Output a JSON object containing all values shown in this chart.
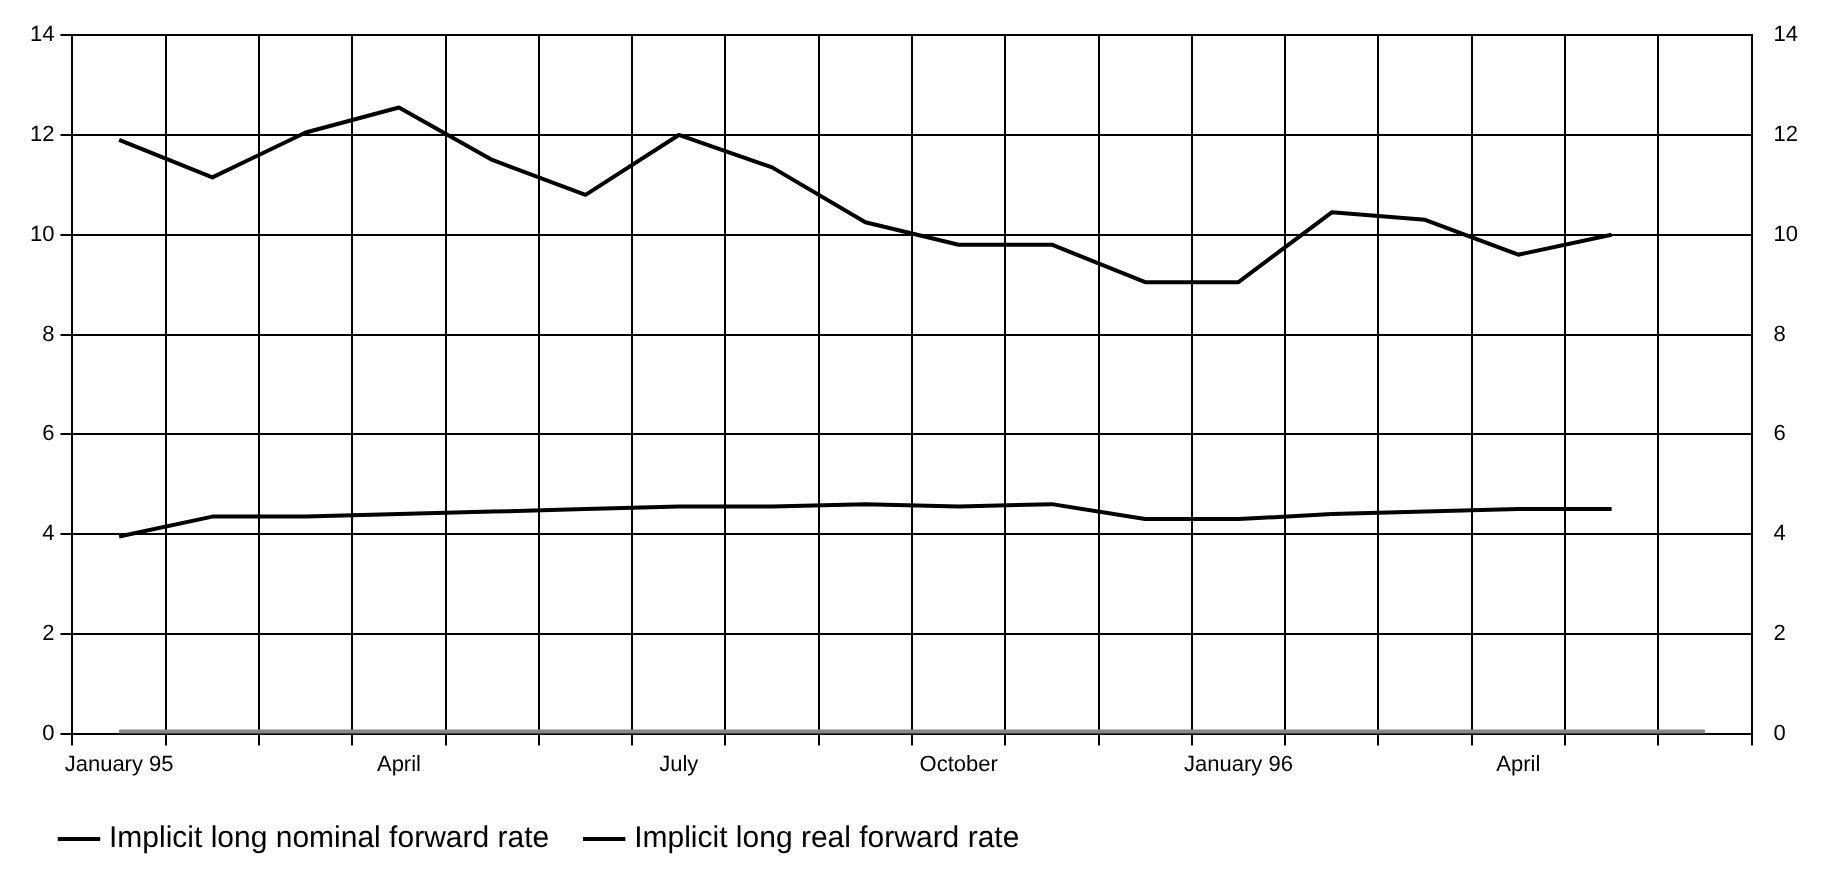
{
  "chart_data": {
    "type": "line",
    "categories": [
      "January 95",
      null,
      null,
      "April",
      null,
      null,
      "July",
      null,
      null,
      "October",
      null,
      null,
      "January 96",
      null,
      null,
      "April",
      null,
      null
    ],
    "series": [
      {
        "name": "Implicit long nominal forward rate",
        "color": "#000000",
        "values": [
          11.9,
          11.15,
          12.05,
          12.55,
          11.5,
          10.8,
          12.0,
          11.35,
          10.25,
          9.8,
          9.8,
          9.05,
          9.05,
          10.45,
          10.3,
          9.6,
          10.0,
          null
        ]
      },
      {
        "name": "Implicit long real forward rate",
        "color": "#000000",
        "values": [
          3.95,
          4.35,
          4.35,
          4.4,
          4.45,
          4.5,
          4.55,
          4.55,
          4.6,
          4.55,
          4.6,
          4.3,
          4.3,
          4.4,
          4.45,
          4.5,
          4.5,
          null
        ]
      },
      {
        "color": "#888888",
        "values": [
          0,
          0,
          0,
          0,
          0,
          0,
          0,
          0,
          0,
          0,
          0,
          0,
          0,
          0,
          0,
          0,
          0,
          0
        ]
      }
    ],
    "ylim": [
      0,
      14
    ],
    "yticks": [
      0,
      2,
      4,
      6,
      8,
      10,
      12,
      14
    ],
    "y2lim": [
      0,
      14
    ],
    "y2ticks": [
      0,
      2,
      4,
      6,
      8,
      10,
      12,
      14
    ],
    "grid": true,
    "legend": "bottom",
    "marker": "none",
    "line_style": "solid"
  }
}
